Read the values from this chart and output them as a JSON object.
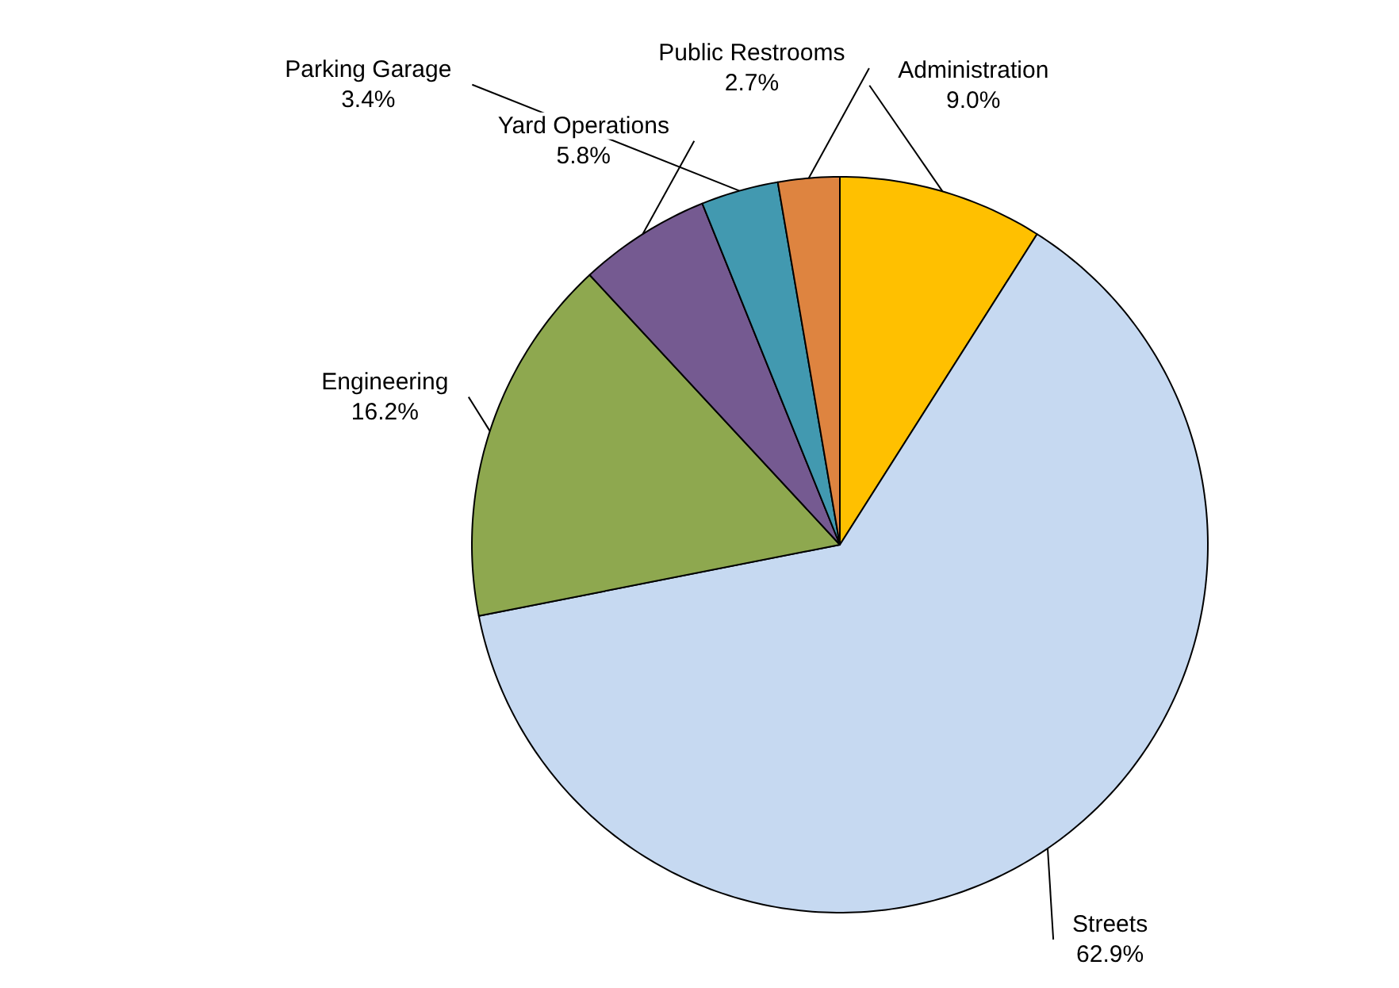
{
  "chart_data": {
    "type": "pie",
    "categories": [
      "Administration",
      "Streets",
      "Engineering",
      "Yard Operations",
      "Parking Garage",
      "Public Restrooms"
    ],
    "values": [
      9.0,
      62.9,
      16.2,
      5.8,
      3.4,
      2.7
    ],
    "value_labels": [
      "9.0%",
      "62.9%",
      "16.2%",
      "5.8%",
      "3.4%",
      "2.7%"
    ],
    "colors": [
      "#ffc000",
      "#c6d9f1",
      "#8ea84f",
      "#755a91",
      "#4299b0",
      "#de8440"
    ]
  }
}
